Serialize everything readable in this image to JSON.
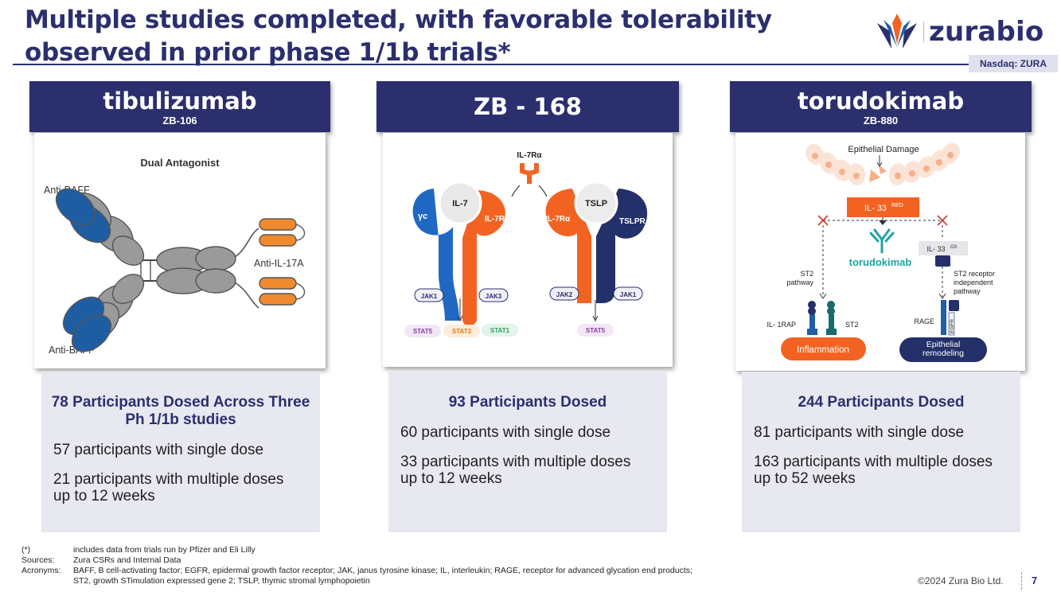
{
  "slide": {
    "title_line1": "Multiple studies completed, with favorable tolerability",
    "title_line2": "observed in prior phase 1/1b trials*",
    "logo_text": "zurabio",
    "ticker": "Nasdaq: ZURA",
    "page_number": "7",
    "copyright": "©2024 Zura Bio Ltd."
  },
  "products": [
    {
      "name": "tibulizumab",
      "code": "ZB-106",
      "diagram": {
        "title": "Dual Antagonist",
        "label_top_left": "Anti-BAFF",
        "label_bottom_left": "Anti-BAFF",
        "label_right": "Anti-IL-17A"
      },
      "stats_head": "78 Participants Dosed Across Three Ph 1/1b studies",
      "stats_line1": "57 participants with single dose",
      "stats_line2": "21 participants with multiple doses up to 12 weeks"
    },
    {
      "name": "ZB - 168",
      "code": "",
      "diagram": {
        "receptor_top": "IL-7Rα",
        "left_cytokine": "IL-7",
        "right_cytokine": "TSLP",
        "gc": "γc",
        "il7ra_left": "IL-7Rα",
        "il7ra_right": "IL-7Rα",
        "tslpr": "TSLPR",
        "jak1_left": "JAK1",
        "jak3": "JAK3",
        "jak2": "JAK2",
        "jak1_right": "JAK1",
        "stat5_left": "STAT5",
        "stat3": "STAT3",
        "stat1": "STAT1",
        "stat5_right": "STAT5"
      },
      "stats_head": "93 Participants Dosed",
      "stats_line1": "60 participants with single dose",
      "stats_line2": "33 participants with multiple doses up to 12 weeks"
    },
    {
      "name": "torudokimab",
      "code": "ZB-880",
      "diagram": {
        "epithelial_damage": "Epithelial Damage",
        "il33_red": "IL- 33",
        "il33_red_sup": "RED",
        "il33_ox": "IL- 33",
        "il33_ox_sup": "OX",
        "antibody": "torudokimab",
        "st2_pathway": "ST2 pathway",
        "st2_independent": "ST2 receptor independent pathway",
        "il1rap": "IL- 1RAP",
        "st2": "ST2",
        "rage": "RAGE",
        "egfr": "EGFR",
        "inflammation": "Inflammation",
        "epithelial_remodeling": "Epithelial remodeling"
      },
      "stats_head": "244 Participants Dosed",
      "stats_line1": "81 participants with single dose",
      "stats_line2": "163 participants with multiple doses up to 52 weeks"
    }
  ],
  "footnotes": [
    {
      "key": "(*)",
      "text": "includes data from trials run by Pfizer and Eli Lilly"
    },
    {
      "key": "Sources:",
      "text": "Zura CSRs and Internal Data"
    },
    {
      "key": "Acronyms:",
      "text": "BAFF, B cell-activating factor; EGFR, epidermal growth factor receptor; JAK, janus tyrosine kinase; IL, interleukin; RAGE, receptor for advanced glycation end products;"
    },
    {
      "key": "",
      "text": "ST2, growth STimulation expressed gene 2; TSLP, thymic stromal lymphopoietin"
    }
  ],
  "colors": {
    "navy": "#2b2f6e",
    "orange": "#f26322",
    "blue": "#1f5fa8",
    "dark_navy": "#23306a",
    "teal": "#1fa3a3"
  }
}
